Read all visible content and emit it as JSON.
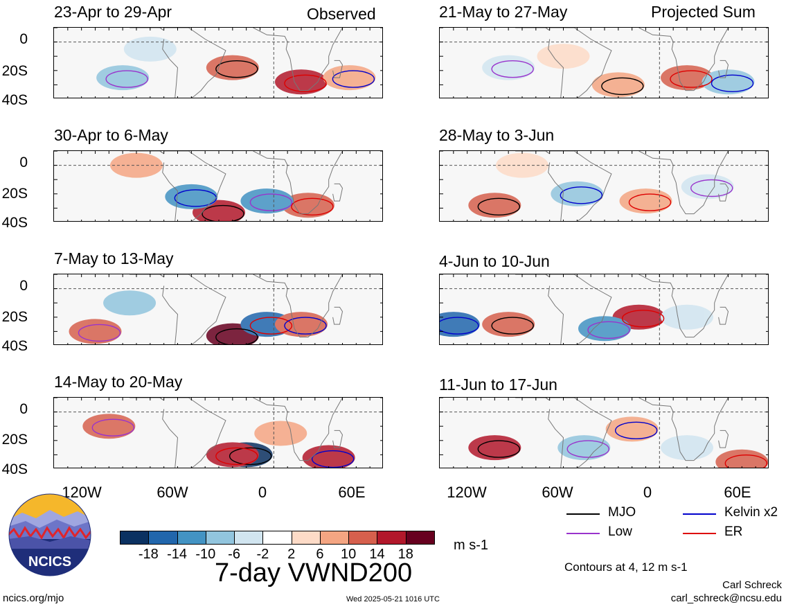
{
  "headers": {
    "observed": "Observed",
    "projected": "Projected Sum"
  },
  "panels": {
    "left": [
      {
        "title": "23-Apr to 29-Apr"
      },
      {
        "title": "30-Apr to 6-May"
      },
      {
        "title": "7-May to 13-May"
      },
      {
        "title": "14-May to 20-May"
      }
    ],
    "right": [
      {
        "title": "21-May to 27-May"
      },
      {
        "title": "28-May to 3-Jun"
      },
      {
        "title": "4-Jun to 10-Jun"
      },
      {
        "title": "11-Jun to 17-Jun"
      }
    ]
  },
  "axes": {
    "lat_labels": [
      "0",
      "20S",
      "40S"
    ],
    "lon_labels": [
      "120W",
      "60W",
      "0",
      "60E"
    ]
  },
  "colorbar": {
    "colors": [
      "#0b3161",
      "#2166ac",
      "#4393c3",
      "#92c5de",
      "#d1e5f0",
      "#ffffff",
      "#fddbc7",
      "#f4a582",
      "#d6604d",
      "#b2182b",
      "#67001f"
    ],
    "labels": [
      "-18",
      "-14",
      "-10",
      "-6",
      "-2",
      "2",
      "6",
      "10",
      "14",
      "18"
    ],
    "units": "m s-1"
  },
  "title": "7-day VWND200",
  "legend": {
    "items": [
      {
        "label": "MJO",
        "color": "#000000"
      },
      {
        "label": "Kelvin x2",
        "color": "#0000cc"
      },
      {
        "label": "Low",
        "color": "#9933cc"
      },
      {
        "label": "ER",
        "color": "#dd0000"
      }
    ],
    "contours_note": "Contours at 4, 12 m s-1"
  },
  "footer": {
    "website": "ncics.org/mjo",
    "timestamp": "Wed 2025-05-21 1016 UTC",
    "author": "Carl Schreck",
    "email": "carl_schreck@ncsu.edu",
    "logo_text": "NCICS"
  }
}
